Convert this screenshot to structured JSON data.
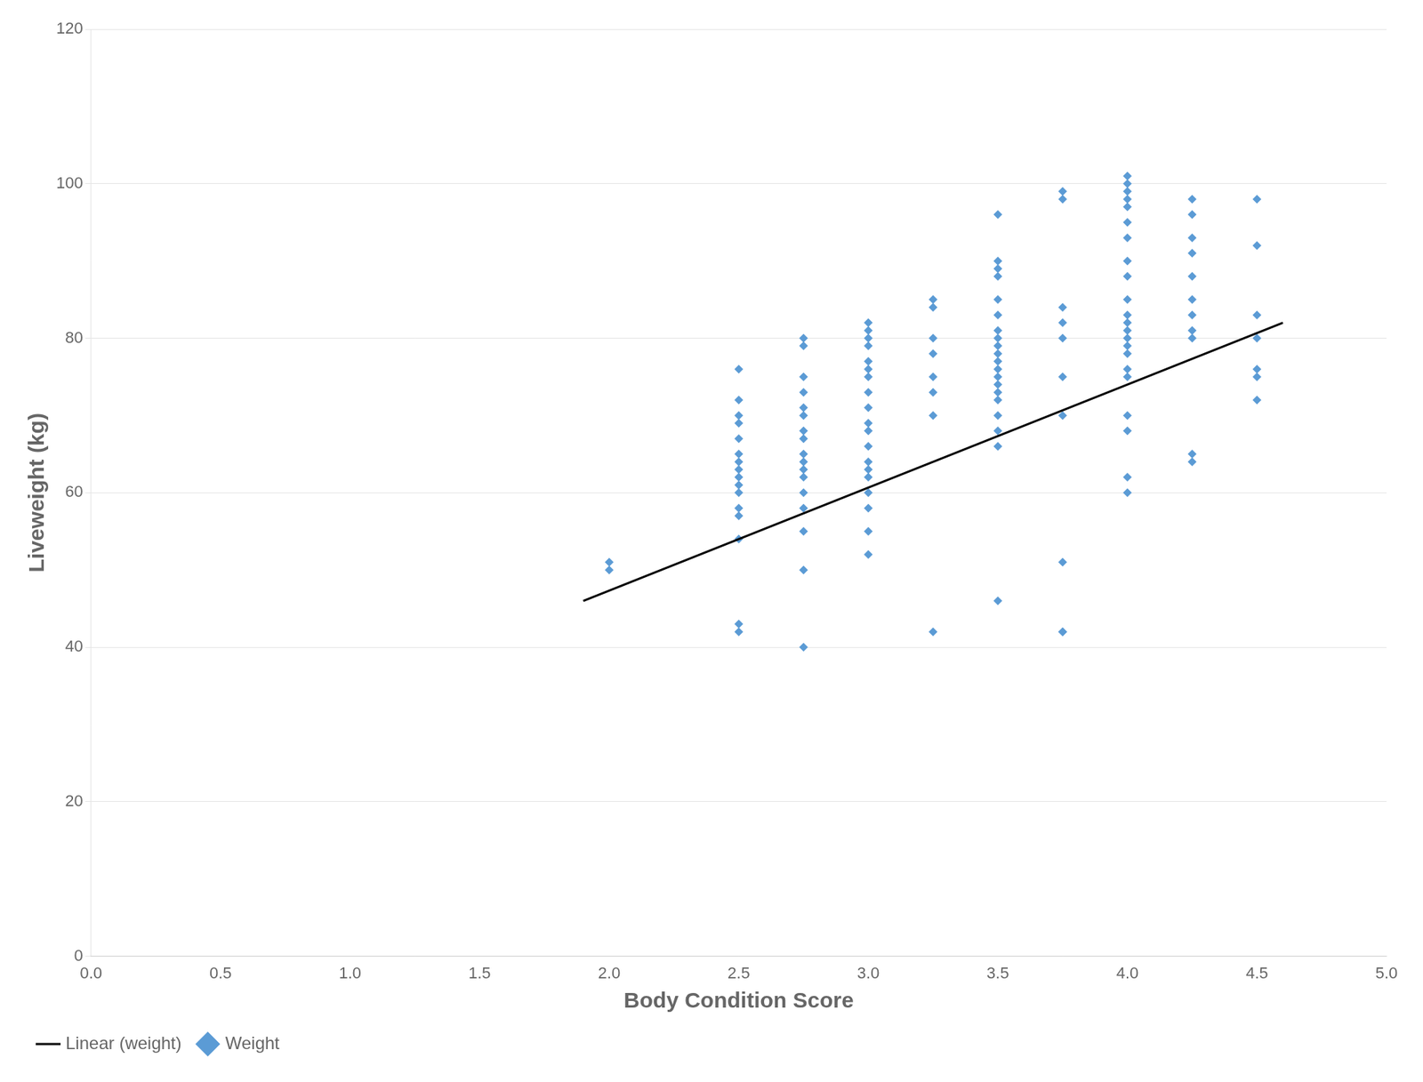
{
  "chart_data": {
    "type": "scatter",
    "xlabel": "Body Condition Score",
    "ylabel": "Liveweight (kg)",
    "xlim": [
      0,
      5
    ],
    "ylim": [
      0,
      120
    ],
    "xticks": [
      {
        "value": 0,
        "label": "0.0"
      },
      {
        "value": 0.5,
        "label": "0.5"
      },
      {
        "value": 1,
        "label": "1.0"
      },
      {
        "value": 1.5,
        "label": "1.5"
      },
      {
        "value": 2,
        "label": "2.0"
      },
      {
        "value": 2.5,
        "label": "2.5"
      },
      {
        "value": 3,
        "label": "3.0"
      },
      {
        "value": 3.5,
        "label": "3.5"
      },
      {
        "value": 4,
        "label": "4.0"
      },
      {
        "value": 4.5,
        "label": "4.5"
      },
      {
        "value": 5,
        "label": "5.0"
      }
    ],
    "yticks": [
      0,
      20,
      40,
      60,
      80,
      100,
      120
    ],
    "grid": "y",
    "legend": "lower left",
    "series": [
      {
        "name": "Weight",
        "type": "scatter",
        "marker": "diamond",
        "color": "#5B9BD5",
        "x": [
          2.0,
          2.0,
          2.5,
          2.5,
          2.5,
          2.5,
          2.5,
          2.5,
          2.5,
          2.5,
          2.5,
          2.5,
          2.5,
          2.5,
          2.5,
          2.5,
          2.5,
          2.5,
          2.75,
          2.75,
          2.75,
          2.75,
          2.75,
          2.75,
          2.75,
          2.75,
          2.75,
          2.75,
          2.75,
          2.75,
          2.75,
          2.75,
          2.75,
          2.75,
          2.75,
          3.0,
          3.0,
          3.0,
          3.0,
          3.0,
          3.0,
          3.0,
          3.0,
          3.0,
          3.0,
          3.0,
          3.0,
          3.0,
          3.0,
          3.0,
          3.0,
          3.0,
          3.0,
          3.0,
          3.25,
          3.25,
          3.25,
          3.25,
          3.25,
          3.25,
          3.25,
          3.25,
          3.5,
          3.5,
          3.5,
          3.5,
          3.5,
          3.5,
          3.5,
          3.5,
          3.5,
          3.5,
          3.5,
          3.5,
          3.5,
          3.5,
          3.5,
          3.5,
          3.5,
          3.5,
          3.5,
          3.5,
          3.75,
          3.75,
          3.75,
          3.75,
          3.75,
          3.75,
          3.75,
          3.75,
          3.75,
          3.75,
          4.0,
          4.0,
          4.0,
          4.0,
          4.0,
          4.0,
          4.0,
          4.0,
          4.0,
          4.0,
          4.0,
          4.0,
          4.0,
          4.0,
          4.0,
          4.0,
          4.0,
          4.0,
          4.0,
          4.0,
          4.0,
          4.0,
          4.25,
          4.25,
          4.25,
          4.25,
          4.25,
          4.25,
          4.25,
          4.25,
          4.25,
          4.25,
          4.25,
          4.5,
          4.5,
          4.5,
          4.5,
          4.5,
          4.5,
          4.5
        ],
        "values": [
          51,
          50,
          76,
          72,
          70,
          69,
          67,
          65,
          64,
          63,
          62,
          61,
          60,
          58,
          57,
          54,
          43,
          42,
          80,
          79,
          75,
          73,
          71,
          70,
          68,
          67,
          65,
          64,
          63,
          62,
          60,
          58,
          55,
          50,
          40,
          82,
          81,
          80,
          79,
          77,
          76,
          75,
          73,
          71,
          69,
          68,
          66,
          64,
          63,
          62,
          60,
          58,
          55,
          52,
          85,
          84,
          80,
          78,
          75,
          73,
          70,
          42,
          96,
          90,
          89,
          88,
          85,
          83,
          81,
          80,
          79,
          78,
          77,
          76,
          75,
          74,
          73,
          72,
          70,
          68,
          66,
          46,
          99,
          98,
          84,
          82,
          80,
          75,
          70,
          51,
          42,
          42,
          101,
          100,
          99,
          98,
          97,
          95,
          93,
          90,
          88,
          85,
          83,
          82,
          81,
          80,
          79,
          78,
          76,
          75,
          70,
          68,
          62,
          60,
          98,
          96,
          93,
          91,
          88,
          85,
          83,
          81,
          80,
          65,
          64,
          98,
          92,
          83,
          80,
          76,
          75,
          72
        ]
      },
      {
        "name": "Linear (weight)",
        "type": "line",
        "line_style": "solid",
        "color": "#000000",
        "x": [
          1.9,
          4.6
        ],
        "values": [
          46,
          82
        ]
      }
    ]
  }
}
